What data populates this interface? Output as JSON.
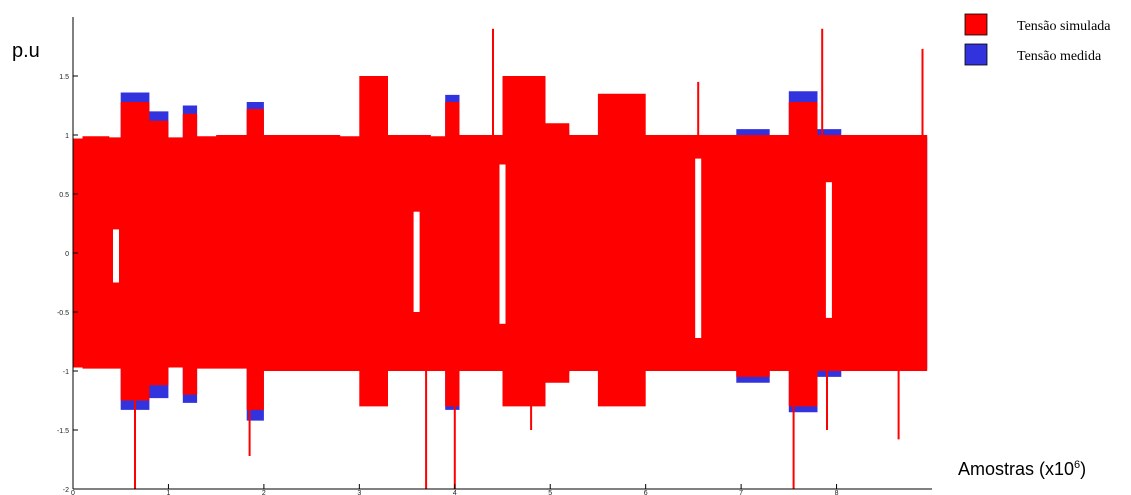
{
  "chart_data": {
    "type": "area",
    "ylabel": "p.u",
    "xlabel": "Amostras (x10",
    "xlabel_exponent": "6",
    "xlabel_close": ")",
    "xlim": [
      0,
      9
    ],
    "ylim": [
      -2,
      2
    ],
    "x_ticks": [
      "0",
      "1",
      "2",
      "3",
      "4",
      "5",
      "6",
      "7",
      "8"
    ],
    "y_ticks": [
      "-2",
      "-1.5",
      "-1",
      "-0.5",
      "0",
      "0.5",
      "1",
      "1.5"
    ],
    "y_tick_values": [
      -2,
      -1.5,
      -1,
      -0.5,
      0,
      0.5,
      1,
      1.5
    ],
    "grid": false,
    "legend_position": "top-right",
    "series": [
      {
        "name": "Tensão medida",
        "color": "#3333dd",
        "envelope": {
          "x": [
            0,
            0.1,
            0.38,
            0.5,
            0.8,
            1.0,
            1.15,
            1.3,
            1.5,
            1.82,
            2.0,
            2.35,
            2.8,
            3.0,
            3.3,
            3.75,
            3.9,
            4.05,
            4.25,
            4.5,
            4.95,
            5.2,
            5.5,
            6.0,
            6.3,
            6.6,
            6.95,
            7.3,
            7.5,
            7.8,
            8.05,
            8.35,
            8.6,
            8.95
          ],
          "upper": [
            0.93,
            0.95,
            0.93,
            1.36,
            1.2,
            0.93,
            1.25,
            0.96,
            0.96,
            1.28,
            0.98,
            0.98,
            0.97,
            0.98,
            0.98,
            0.98,
            1.34,
            0.98,
            0.98,
            1.1,
            1.04,
            0.98,
            0.98,
            0.97,
            0.98,
            1.0,
            1.05,
            0.97,
            1.37,
            1.05,
            0.96,
            0.98,
            0.98,
            0.9
          ],
          "lower": [
            -0.93,
            -0.93,
            -0.87,
            -1.33,
            -1.23,
            -0.92,
            -1.27,
            -0.91,
            -0.92,
            -1.42,
            -0.98,
            -0.98,
            -0.98,
            -0.98,
            -0.98,
            -0.98,
            -1.33,
            -0.98,
            -0.98,
            -1.08,
            -1.02,
            -0.98,
            -0.98,
            -0.93,
            -0.98,
            -1.0,
            -1.1,
            -0.97,
            -1.35,
            -1.05,
            -0.95,
            -0.98,
            -0.98,
            -0.88
          ]
        }
      },
      {
        "name": "Tensão simulada",
        "color": "#ff0000",
        "envelope": {
          "x": [
            0,
            0.1,
            0.38,
            0.5,
            0.8,
            1.0,
            1.15,
            1.3,
            1.5,
            1.82,
            2.0,
            2.35,
            2.8,
            3.0,
            3.3,
            3.75,
            3.9,
            4.05,
            4.25,
            4.5,
            4.95,
            5.2,
            5.5,
            6.0,
            6.3,
            6.6,
            6.95,
            7.3,
            7.5,
            7.8,
            8.05,
            8.35,
            8.6,
            8.95
          ],
          "upper": [
            0.97,
            0.99,
            0.98,
            1.28,
            1.12,
            0.98,
            1.18,
            0.99,
            1.0,
            1.22,
            1.0,
            1.0,
            0.99,
            1.5,
            1.0,
            0.99,
            1.28,
            1.0,
            1.0,
            1.5,
            1.1,
            1.0,
            1.35,
            1.0,
            1.0,
            1.0,
            1.0,
            1.0,
            1.28,
            1.0,
            1.0,
            1.0,
            1.0,
            0.97
          ],
          "lower": [
            -0.97,
            -0.98,
            -0.98,
            -1.25,
            -1.12,
            -0.97,
            -1.2,
            -0.98,
            -0.98,
            -1.33,
            -1.0,
            -1.0,
            -1.0,
            -1.3,
            -1.0,
            -1.0,
            -1.3,
            -1.0,
            -1.0,
            -1.3,
            -1.1,
            -1.0,
            -1.3,
            -1.0,
            -1.0,
            -1.0,
            -1.05,
            -1.0,
            -1.3,
            -1.0,
            -1.0,
            -1.0,
            -1.0,
            -0.97
          ]
        }
      }
    ],
    "spikes": [
      {
        "x": 0.65,
        "y": -2.0,
        "color": "#ff0000"
      },
      {
        "x": 1.85,
        "y": -1.72,
        "color": "#ff0000"
      },
      {
        "x": 3.7,
        "y": -2.0,
        "color": "#ff0000"
      },
      {
        "x": 4.0,
        "y": -2.0,
        "color": "#ff0000"
      },
      {
        "x": 4.4,
        "y": 1.9,
        "color": "#ff0000"
      },
      {
        "x": 7.55,
        "y": -2.0,
        "color": "#ff0000"
      },
      {
        "x": 7.85,
        "y": 1.9,
        "color": "#ff0000"
      },
      {
        "x": 7.9,
        "y": -1.5,
        "color": "#ff0000"
      },
      {
        "x": 8.65,
        "y": -1.58,
        "color": "#ff0000"
      },
      {
        "x": 8.9,
        "y": 1.73,
        "color": "#ff0000"
      },
      {
        "x": 6.55,
        "y": 1.45,
        "color": "#ff0000"
      },
      {
        "x": 4.8,
        "y": -1.5,
        "color": "#ff0000"
      }
    ],
    "dips": [
      {
        "x": 0.45,
        "top": 0.2,
        "bottom": -0.25
      },
      {
        "x": 3.6,
        "top": 0.35,
        "bottom": -0.5
      },
      {
        "x": 4.5,
        "top": 0.75,
        "bottom": -0.6
      },
      {
        "x": 6.55,
        "top": 0.8,
        "bottom": -0.72
      },
      {
        "x": 7.92,
        "top": 0.6,
        "bottom": -0.55
      }
    ]
  }
}
